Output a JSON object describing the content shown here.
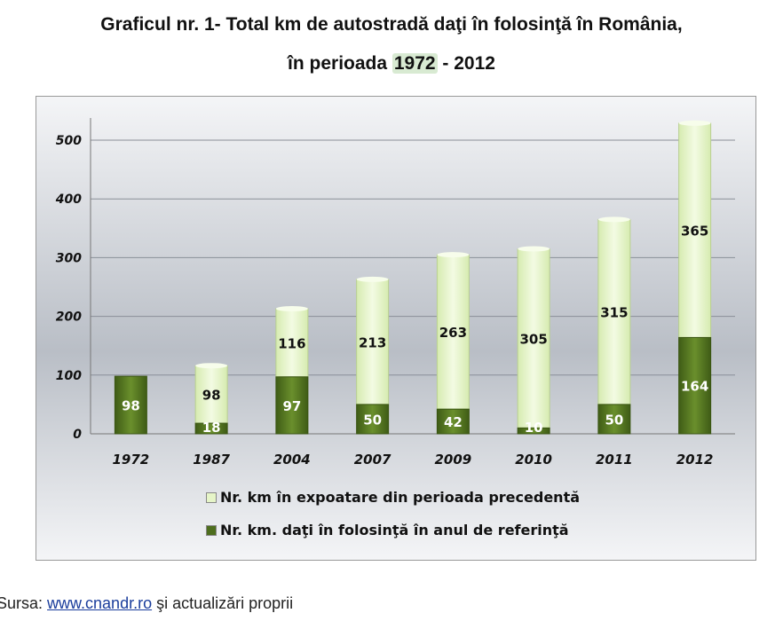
{
  "title_line1": "Graficul nr.  1- Total km de autostradă daţi în folosinţă în România,",
  "title_line2_prefix": "în perioada ",
  "title_line2_highlight": "1972",
  "title_line2_suffix": " - 2012",
  "chart_data": {
    "type": "bar",
    "stacked": true,
    "title": "Graficul nr. 1- Total km de autostradă daţi în folosinţă în România, în perioada 1972 - 2012",
    "categories": [
      "1972",
      "1987",
      "2004",
      "2007",
      "2009",
      "2010",
      "2011",
      "2012"
    ],
    "series": [
      {
        "name": "Nr. km. daţi în folosinţă în anul de referinţă",
        "color": "#4e6e1e",
        "values": [
          98,
          18,
          97,
          50,
          42,
          10,
          50,
          164
        ]
      },
      {
        "name": "Nr. km în expoatare din perioada precedentă",
        "color": "#e6f5c8",
        "values": [
          0,
          98,
          116,
          213,
          263,
          305,
          315,
          365
        ]
      }
    ],
    "ylim": [
      0,
      500
    ],
    "yticks": [
      0,
      100,
      200,
      300,
      400,
      500
    ],
    "legend": "bottom",
    "grid": true
  },
  "source": {
    "prefix": "Sursa: ",
    "link": "www.cnandr.ro",
    "suffix": " şi actualizări proprii"
  }
}
